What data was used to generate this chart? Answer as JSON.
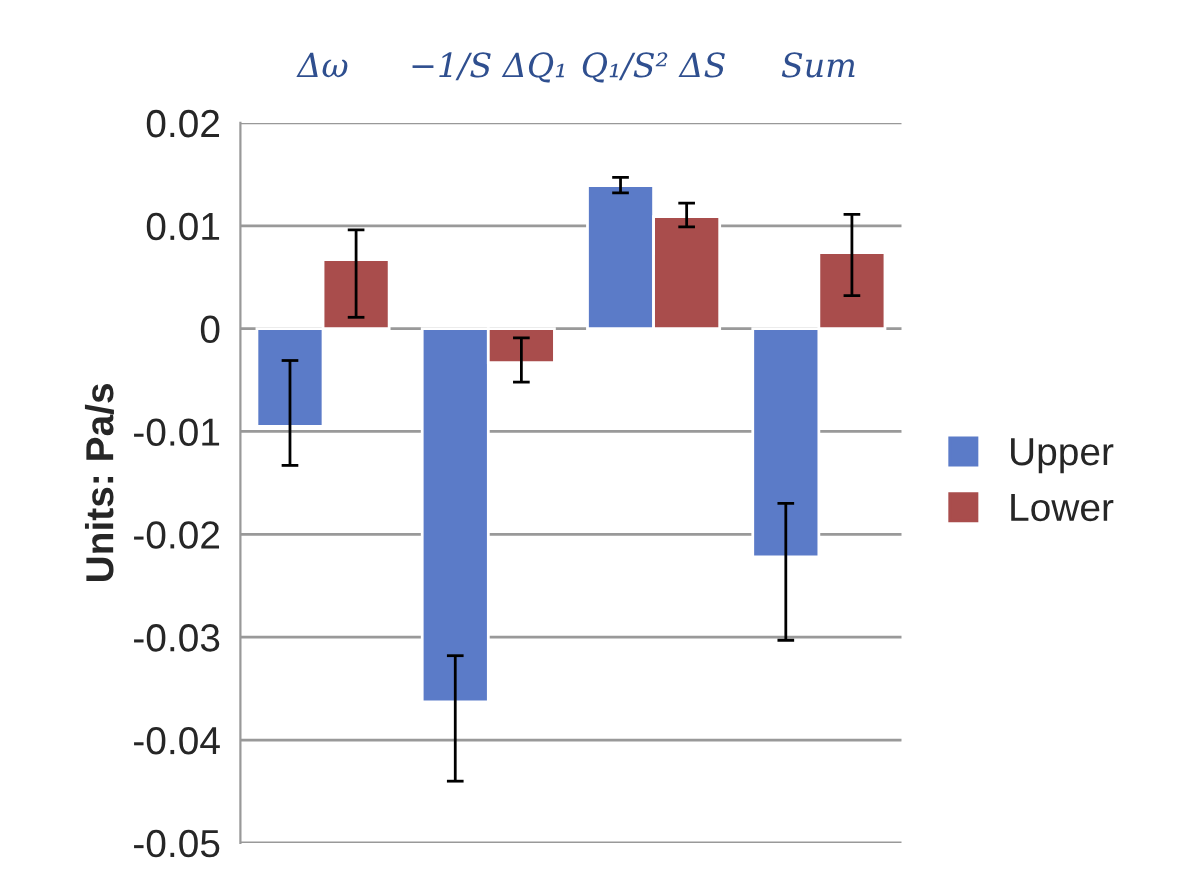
{
  "chart_data": {
    "type": "bar",
    "ylabel": "Units: Pa/s",
    "categories": [
      "Δω",
      "−1/S ΔQ₁",
      "Q₁/S² ΔS",
      "Sum"
    ],
    "series": [
      {
        "name": "Upper",
        "color": "#5b7bc8",
        "values": [
          -0.0095,
          -0.0363,
          0.0139,
          -0.0222
        ],
        "errors": [
          [
            -0.0133,
            -0.0031
          ],
          [
            -0.044,
            -0.0318
          ],
          [
            0.0132,
            0.0147
          ],
          [
            -0.0303,
            -0.017
          ]
        ]
      },
      {
        "name": "Lower",
        "color": "#a94d4c",
        "values": [
          0.0067,
          -0.0033,
          0.0109,
          0.0074
        ],
        "errors": [
          [
            0.0011,
            0.0096
          ],
          [
            -0.0052,
            -0.0009
          ],
          [
            0.0099,
            0.0122
          ],
          [
            0.0032,
            0.0111
          ]
        ]
      }
    ],
    "ylim": [
      -0.05,
      0.02
    ],
    "yticks": [
      -0.05,
      -0.04,
      -0.03,
      -0.02,
      -0.01,
      0,
      0.01,
      0.02
    ],
    "grid": "y",
    "legend": "right"
  }
}
